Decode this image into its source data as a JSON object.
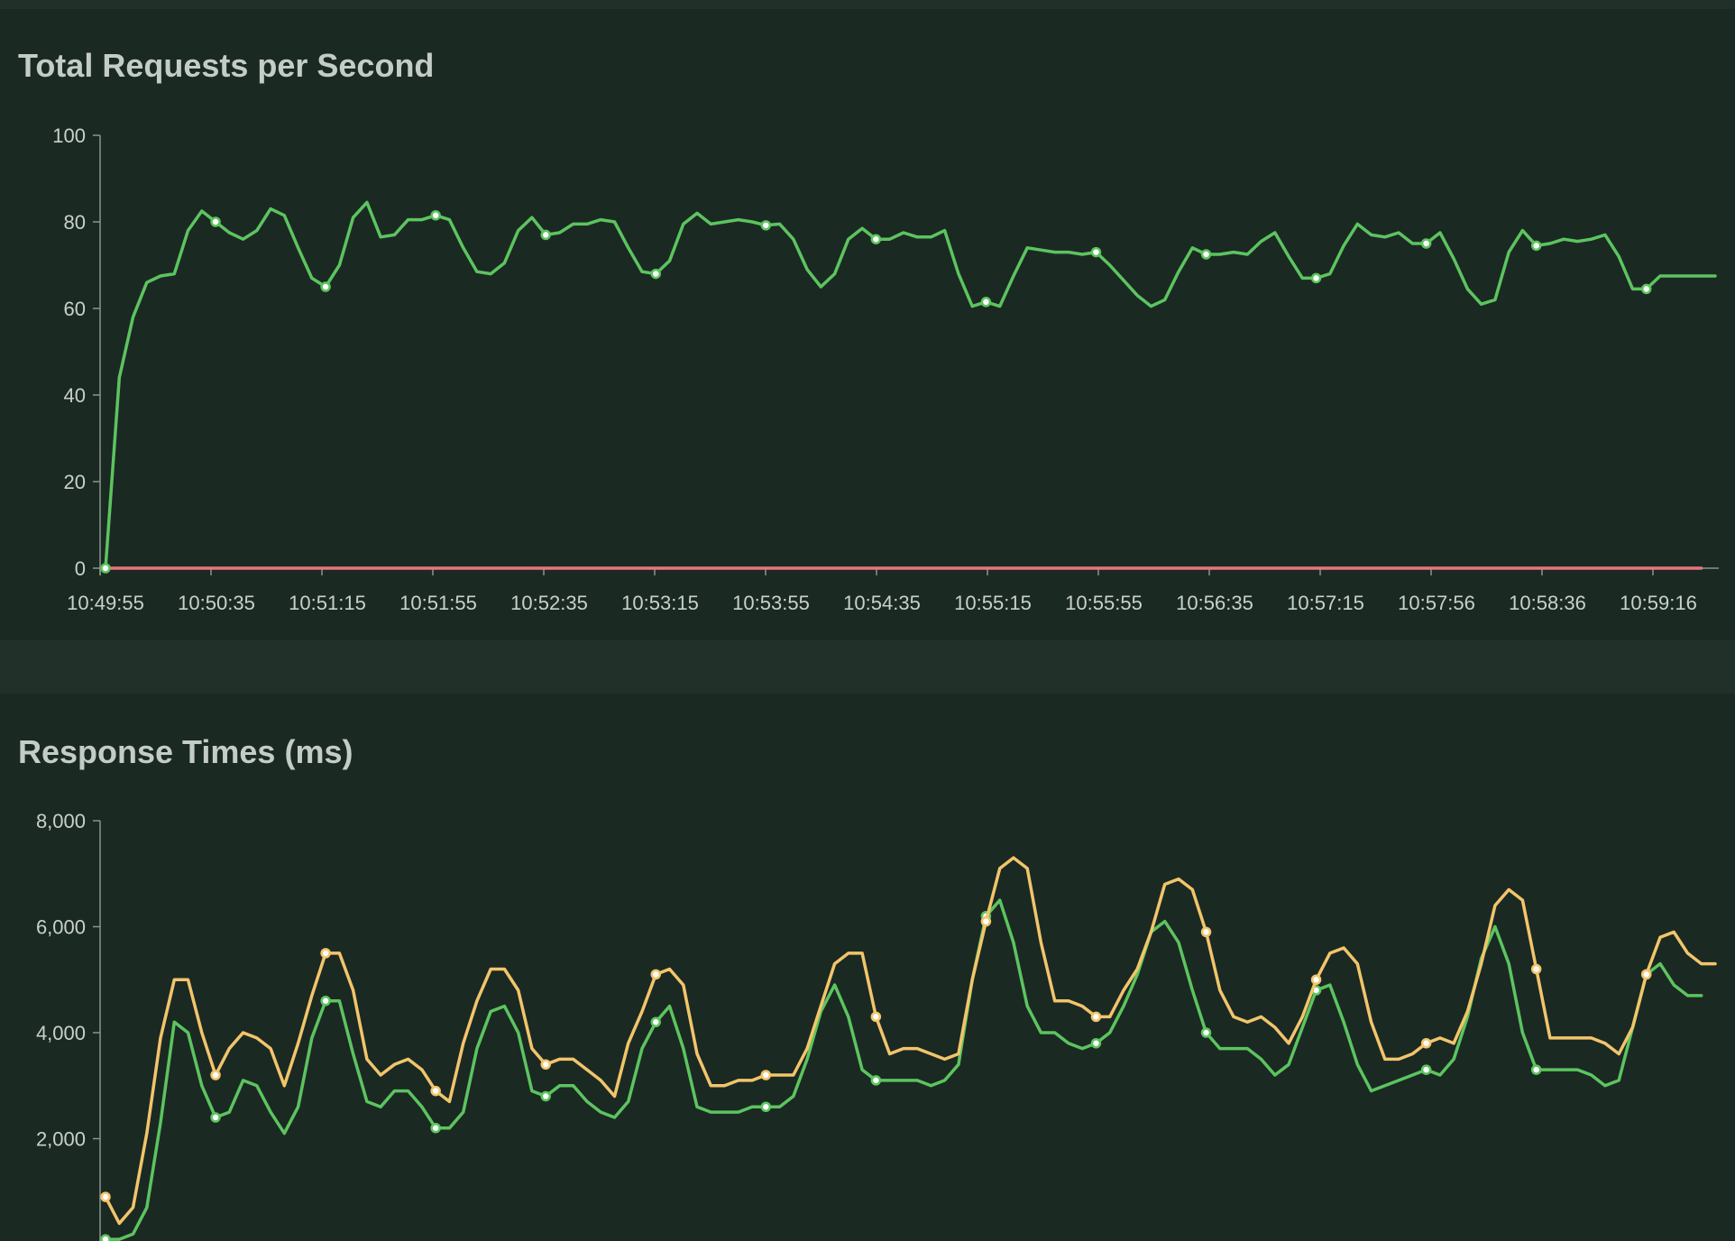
{
  "chart_data": [
    {
      "type": "line",
      "title": "Total Requests per Second",
      "x_tick_labels": [
        "10:49:55",
        "10:50:35",
        "10:51:15",
        "10:51:55",
        "10:52:35",
        "10:53:15",
        "10:53:55",
        "10:54:35",
        "10:55:15",
        "10:55:55",
        "10:56:35",
        "10:57:15",
        "10:57:56",
        "10:58:36",
        "10:59:16"
      ],
      "y_ticks": [
        "0",
        "20",
        "40",
        "60",
        "80",
        "100"
      ],
      "ylim": [
        0,
        100
      ],
      "grid": false,
      "colors": {
        "series_1": "#5cc45f",
        "series_2": "#e8767a"
      },
      "series": [
        {
          "values": [
            0,
            44,
            58,
            66,
            67.5,
            68,
            78,
            82.5,
            80,
            77.5,
            76,
            78,
            83,
            81.5,
            74,
            67,
            65,
            70,
            81,
            84.5,
            76.5,
            77,
            80.5,
            80.5,
            81.5,
            80.5,
            74,
            68.5,
            68,
            70.5,
            78,
            81,
            77,
            77.5,
            79.5,
            79.5,
            80.5,
            80,
            74,
            68.5,
            68,
            71,
            79.5,
            82,
            79.5,
            80,
            80.5,
            80,
            79.2,
            79.5,
            76,
            69,
            65,
            68,
            76,
            78.5,
            76,
            76,
            77.5,
            76.5,
            76.5,
            78,
            68,
            60.5,
            61.5,
            60.5,
            67.5,
            74,
            73.5,
            73,
            73,
            72.5,
            73,
            70,
            66.5,
            63,
            60.5,
            62,
            68.5,
            74,
            72.5,
            72.5,
            73,
            72.5,
            75.5,
            77.5,
            72,
            67,
            67,
            68,
            74.5,
            79.5,
            77,
            76.5,
            77.5,
            75,
            75,
            77.5,
            71.5,
            64.5,
            61,
            62,
            73,
            78,
            74.5,
            75,
            76,
            75.5,
            76,
            77,
            72,
            64.5,
            64.5,
            67.5,
            67.5,
            67.5,
            67.5,
            67.5
          ]
        },
        {
          "values": [
            0,
            0,
            0,
            0,
            0,
            0,
            0,
            0,
            0,
            0,
            0,
            0,
            0,
            0,
            0,
            0,
            0,
            0,
            0,
            0,
            0,
            0,
            0,
            0,
            0,
            0,
            0,
            0,
            0,
            0,
            0,
            0,
            0,
            0,
            0,
            0,
            0,
            0,
            0,
            0,
            0,
            0,
            0,
            0,
            0,
            0,
            0,
            0,
            0,
            0,
            0,
            0,
            0,
            0,
            0,
            0,
            0,
            0,
            0,
            0,
            0,
            0,
            0,
            0,
            0,
            0,
            0,
            0,
            0,
            0,
            0,
            0,
            0,
            0,
            0,
            0,
            0,
            0,
            0,
            0,
            0,
            0,
            0,
            0,
            0,
            0,
            0,
            0,
            0,
            0,
            0,
            0,
            0,
            0,
            0,
            0,
            0,
            0,
            0,
            0,
            0,
            0,
            0,
            0,
            0,
            0,
            0,
            0,
            0,
            0,
            0,
            0,
            0,
            0,
            0,
            0,
            0
          ]
        }
      ]
    },
    {
      "type": "line",
      "title": "Response Times (ms)",
      "y_ticks": [
        "2,000",
        "4,000",
        "6,000",
        "8,000"
      ],
      "ylim": [
        0,
        8000
      ],
      "grid": false,
      "colors": {
        "series_1": "#f2c56b",
        "series_2": "#5cc45f"
      },
      "series": [
        {
          "values": [
            900,
            400,
            700,
            2100,
            3900,
            5000,
            5000,
            4000,
            3200,
            3700,
            4000,
            3900,
            3700,
            3000,
            3800,
            4700,
            5500,
            5500,
            4800,
            3500,
            3200,
            3400,
            3500,
            3300,
            2900,
            2700,
            3800,
            4600,
            5200,
            5200,
            4800,
            3700,
            3400,
            3500,
            3500,
            3300,
            3100,
            2800,
            3800,
            4400,
            5100,
            5200,
            4900,
            3600,
            3000,
            3000,
            3100,
            3100,
            3200,
            3200,
            3200,
            3700,
            4500,
            5300,
            5500,
            5500,
            4300,
            3600,
            3700,
            3700,
            3600,
            3500,
            3600,
            5000,
            6100,
            7100,
            7300,
            7100,
            5700,
            4600,
            4600,
            4500,
            4300,
            4300,
            4800,
            5200,
            5900,
            6800,
            6900,
            6700,
            5900,
            4800,
            4300,
            4200,
            4300,
            4100,
            3800,
            4300,
            5000,
            5500,
            5600,
            5300,
            4200,
            3500,
            3500,
            3600,
            3800,
            3900,
            3800,
            4400,
            5300,
            6400,
            6700,
            6500,
            5200,
            3900,
            3900,
            3900,
            3900,
            3800,
            3600,
            4100,
            5100,
            5800,
            5900,
            5500,
            5300,
            5300
          ]
        },
        {
          "values": [
            100,
            100,
            200,
            700,
            2300,
            4200,
            4000,
            3000,
            2400,
            2500,
            3100,
            3000,
            2500,
            2100,
            2600,
            3900,
            4600,
            4600,
            3600,
            2700,
            2600,
            2900,
            2900,
            2600,
            2200,
            2200,
            2500,
            3700,
            4400,
            4500,
            4000,
            2900,
            2800,
            3000,
            3000,
            2700,
            2500,
            2400,
            2700,
            3700,
            4200,
            4500,
            3700,
            2600,
            2500,
            2500,
            2500,
            2600,
            2600,
            2600,
            2800,
            3500,
            4400,
            4900,
            4300,
            3300,
            3100,
            3100,
            3100,
            3100,
            3000,
            3100,
            3400,
            5000,
            6200,
            6500,
            5700,
            4500,
            4000,
            4000,
            3800,
            3700,
            3800,
            4000,
            4500,
            5100,
            5900,
            6100,
            5700,
            4800,
            4000,
            3700,
            3700,
            3700,
            3500,
            3200,
            3400,
            4100,
            4800,
            4900,
            4200,
            3400,
            2900,
            3000,
            3100,
            3200,
            3300,
            3200,
            3500,
            4300,
            5400,
            6000,
            5300,
            4000,
            3300,
            3300,
            3300,
            3300,
            3200,
            3000,
            3100,
            4100,
            5100,
            5300,
            4900,
            4700,
            4700
          ]
        }
      ]
    }
  ]
}
